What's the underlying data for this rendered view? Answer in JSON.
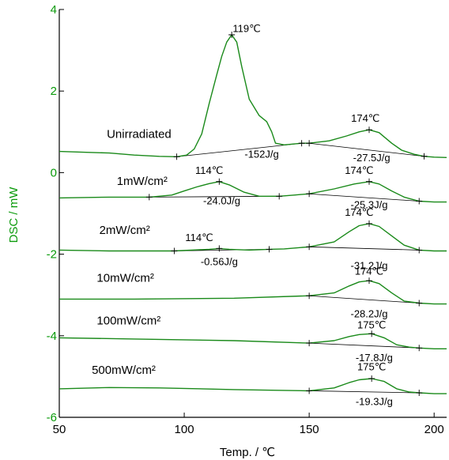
{
  "chart_data": {
    "type": "line",
    "title": "",
    "xlabel": "Temp. / ℃",
    "ylabel": "DSC / mW",
    "xlim": [
      50,
      205
    ],
    "ylim": [
      -6,
      4
    ],
    "x_ticks": [
      50,
      100,
      150,
      200
    ],
    "y_ticks": [
      -6,
      -4,
      -2,
      0,
      2,
      4
    ],
    "grid": false,
    "legend": "none",
    "colors": {
      "curve": "#1a8a1a",
      "baseline": "#000000",
      "ylabel": "#0a9a0a",
      "axis_text": "#000000"
    },
    "series": [
      {
        "name": "Unirradiated",
        "label_at": [
          69,
          0.85
        ],
        "points": [
          [
            50,
            0.52
          ],
          [
            70,
            0.48
          ],
          [
            80,
            0.43
          ],
          [
            90,
            0.4
          ],
          [
            97,
            0.39
          ],
          [
            101,
            0.43
          ],
          [
            104,
            0.58
          ],
          [
            107,
            0.95
          ],
          [
            110,
            1.7
          ],
          [
            113,
            2.4
          ],
          [
            115,
            2.85
          ],
          [
            117,
            3.2
          ],
          [
            119,
            3.38
          ],
          [
            121,
            3.2
          ],
          [
            123,
            2.6
          ],
          [
            126,
            1.8
          ],
          [
            130,
            1.4
          ],
          [
            133,
            1.25
          ],
          [
            135,
            1.0
          ],
          [
            136.5,
            0.72
          ],
          [
            140,
            0.68
          ],
          [
            147,
            0.72
          ],
          [
            150,
            0.72
          ],
          [
            158,
            0.78
          ],
          [
            165,
            0.9
          ],
          [
            170,
            1.0
          ],
          [
            174,
            1.05
          ],
          [
            178,
            0.98
          ],
          [
            183,
            0.72
          ],
          [
            187,
            0.55
          ],
          [
            192,
            0.45
          ],
          [
            196,
            0.4
          ],
          [
            200,
            0.38
          ],
          [
            205,
            0.37
          ]
        ],
        "baselines": [
          [
            [
              97,
              0.39
            ],
            [
              147,
              0.72
            ]
          ],
          [
            [
              150,
              0.72
            ],
            [
              196,
              0.4
            ]
          ]
        ],
        "markers": [
          [
            97,
            0.39
          ],
          [
            119,
            3.38
          ],
          [
            147,
            0.72
          ],
          [
            150,
            0.72
          ],
          [
            174,
            1.05
          ],
          [
            196,
            0.4
          ]
        ],
        "annotations": [
          {
            "text": "119℃",
            "x": 125,
            "y": 3.45
          },
          {
            "text": "-152J/g",
            "x": 131,
            "y": 0.37
          },
          {
            "text": "174℃",
            "x": 172.5,
            "y": 1.25
          },
          {
            "text": "-27.5J/g",
            "x": 175,
            "y": 0.28
          }
        ]
      },
      {
        "name": "1mW/cm²",
        "label_at": [
          73,
          -0.3
        ],
        "points": [
          [
            50,
            -0.62
          ],
          [
            70,
            -0.6
          ],
          [
            86,
            -0.6
          ],
          [
            95,
            -0.55
          ],
          [
            100,
            -0.45
          ],
          [
            105,
            -0.35
          ],
          [
            110,
            -0.27
          ],
          [
            114,
            -0.22
          ],
          [
            118,
            -0.3
          ],
          [
            124,
            -0.48
          ],
          [
            130,
            -0.58
          ],
          [
            138,
            -0.58
          ],
          [
            144,
            -0.55
          ],
          [
            150,
            -0.52
          ],
          [
            160,
            -0.4
          ],
          [
            168,
            -0.28
          ],
          [
            174,
            -0.22
          ],
          [
            178,
            -0.28
          ],
          [
            183,
            -0.45
          ],
          [
            188,
            -0.6
          ],
          [
            194,
            -0.7
          ],
          [
            200,
            -0.72
          ],
          [
            205,
            -0.72
          ]
        ],
        "baselines": [
          [
            [
              86,
              -0.6
            ],
            [
              138,
              -0.58
            ]
          ],
          [
            [
              150,
              -0.52
            ],
            [
              194,
              -0.7
            ]
          ]
        ],
        "markers": [
          [
            86,
            -0.6
          ],
          [
            114,
            -0.22
          ],
          [
            138,
            -0.58
          ],
          [
            150,
            -0.52
          ],
          [
            174,
            -0.22
          ],
          [
            194,
            -0.7
          ]
        ],
        "annotations": [
          {
            "text": "114℃",
            "x": 110,
            "y": -0.03
          },
          {
            "text": "-24.0J/g",
            "x": 115,
            "y": -0.78
          },
          {
            "text": "174℃",
            "x": 170,
            "y": -0.03
          },
          {
            "text": "-25.3J/g",
            "x": 174,
            "y": -0.87
          }
        ]
      },
      {
        "name": "2mW/cm²",
        "label_at": [
          66,
          -1.5
        ],
        "points": [
          [
            50,
            -1.9
          ],
          [
            70,
            -1.92
          ],
          [
            96,
            -1.92
          ],
          [
            110,
            -1.88
          ],
          [
            114,
            -1.86
          ],
          [
            118,
            -1.88
          ],
          [
            126,
            -1.9
          ],
          [
            134,
            -1.88
          ],
          [
            140,
            -1.87
          ],
          [
            150,
            -1.82
          ],
          [
            160,
            -1.7
          ],
          [
            166,
            -1.45
          ],
          [
            170,
            -1.3
          ],
          [
            174,
            -1.25
          ],
          [
            178,
            -1.32
          ],
          [
            183,
            -1.55
          ],
          [
            188,
            -1.78
          ],
          [
            194,
            -1.9
          ],
          [
            200,
            -1.92
          ],
          [
            205,
            -1.92
          ]
        ],
        "baselines": [
          [
            [
              96,
              -1.92
            ],
            [
              134,
              -1.88
            ]
          ],
          [
            [
              150,
              -1.82
            ],
            [
              194,
              -1.9
            ]
          ]
        ],
        "markers": [
          [
            96,
            -1.92
          ],
          [
            114,
            -1.86
          ],
          [
            134,
            -1.88
          ],
          [
            150,
            -1.82
          ],
          [
            174,
            -1.25
          ],
          [
            194,
            -1.9
          ]
        ],
        "annotations": [
          {
            "text": "114℃",
            "x": 106,
            "y": -1.68
          },
          {
            "text": "-0.56J/g",
            "x": 114,
            "y": -2.27
          },
          {
            "text": "174℃",
            "x": 170,
            "y": -1.06
          },
          {
            "text": "-31.2J/g",
            "x": 174,
            "y": -2.37
          }
        ]
      },
      {
        "name": "10mW/cm²",
        "label_at": [
          65,
          -2.68
        ],
        "points": [
          [
            50,
            -3.1
          ],
          [
            80,
            -3.1
          ],
          [
            120,
            -3.08
          ],
          [
            150,
            -3.02
          ],
          [
            160,
            -2.95
          ],
          [
            166,
            -2.78
          ],
          [
            170,
            -2.68
          ],
          [
            174,
            -2.65
          ],
          [
            178,
            -2.72
          ],
          [
            183,
            -2.95
          ],
          [
            188,
            -3.15
          ],
          [
            194,
            -3.2
          ],
          [
            200,
            -3.22
          ],
          [
            205,
            -3.22
          ]
        ],
        "baselines": [
          [
            [
              150,
              -3.02
            ],
            [
              194,
              -3.2
            ]
          ]
        ],
        "markers": [
          [
            150,
            -3.02
          ],
          [
            174,
            -2.65
          ],
          [
            194,
            -3.2
          ]
        ],
        "annotations": [
          {
            "text": "174℃",
            "x": 174,
            "y": -2.5
          },
          {
            "text": "-28.2J/g",
            "x": 174,
            "y": -3.55
          }
        ]
      },
      {
        "name": "100mW/cm²",
        "label_at": [
          65,
          -3.72
        ],
        "points": [
          [
            50,
            -4.05
          ],
          [
            80,
            -4.08
          ],
          [
            120,
            -4.12
          ],
          [
            150,
            -4.18
          ],
          [
            160,
            -4.12
          ],
          [
            166,
            -4.02
          ],
          [
            170,
            -3.97
          ],
          [
            175,
            -3.95
          ],
          [
            180,
            -4.05
          ],
          [
            185,
            -4.22
          ],
          [
            190,
            -4.28
          ],
          [
            194,
            -4.3
          ],
          [
            200,
            -4.32
          ],
          [
            205,
            -4.32
          ]
        ],
        "baselines": [
          [
            [
              150,
              -4.18
            ],
            [
              194,
              -4.3
            ]
          ]
        ],
        "markers": [
          [
            150,
            -4.18
          ],
          [
            175,
            -3.95
          ],
          [
            194,
            -4.3
          ]
        ],
        "annotations": [
          {
            "text": "175℃",
            "x": 175,
            "y": -3.82
          },
          {
            "text": "-17.8J/g",
            "x": 176,
            "y": -4.62
          }
        ]
      },
      {
        "name": "500mW/cm²",
        "label_at": [
          63,
          -4.93
        ],
        "points": [
          [
            50,
            -5.3
          ],
          [
            70,
            -5.27
          ],
          [
            90,
            -5.28
          ],
          [
            120,
            -5.32
          ],
          [
            150,
            -5.35
          ],
          [
            160,
            -5.28
          ],
          [
            166,
            -5.15
          ],
          [
            170,
            -5.08
          ],
          [
            175,
            -5.05
          ],
          [
            180,
            -5.12
          ],
          [
            185,
            -5.3
          ],
          [
            190,
            -5.38
          ],
          [
            194,
            -5.4
          ],
          [
            200,
            -5.42
          ],
          [
            205,
            -5.42
          ]
        ],
        "baselines": [
          [
            [
              150,
              -5.35
            ],
            [
              194,
              -5.4
            ]
          ]
        ],
        "markers": [
          [
            150,
            -5.35
          ],
          [
            175,
            -5.05
          ],
          [
            194,
            -5.4
          ]
        ],
        "annotations": [
          {
            "text": "175℃",
            "x": 175,
            "y": -4.85
          },
          {
            "text": "-19.3J/g",
            "x": 176,
            "y": -5.7
          }
        ]
      }
    ]
  }
}
